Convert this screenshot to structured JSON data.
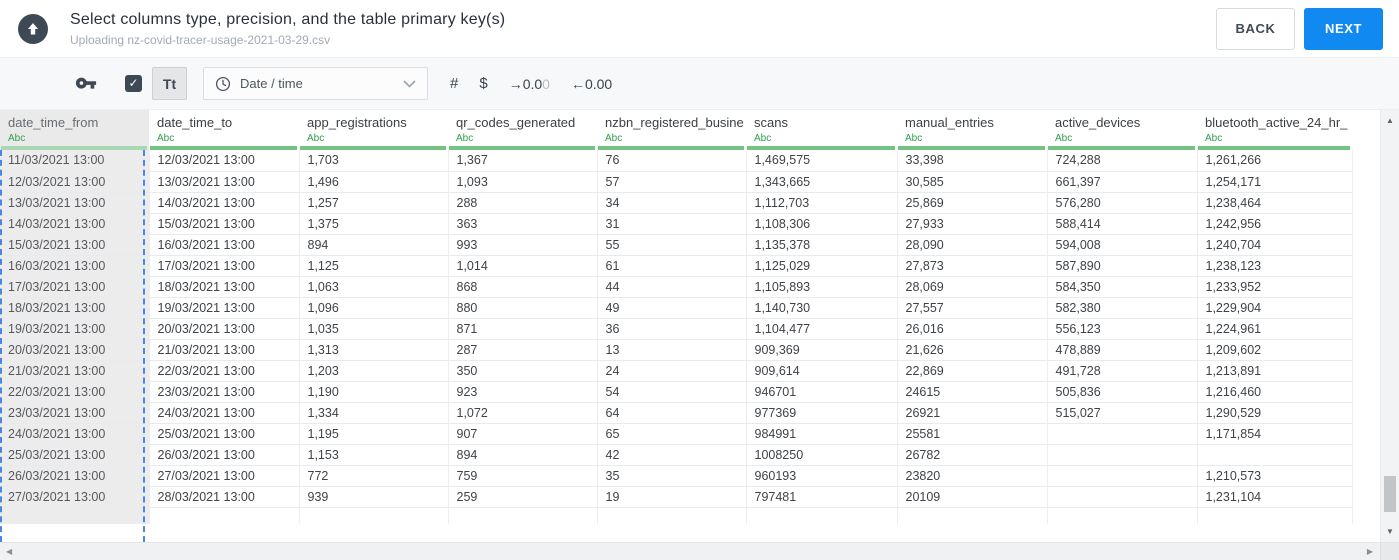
{
  "header": {
    "title": "Select columns type, precision, and the table primary key(s)",
    "subtitle": "Uploading nz-covid-tracer-usage-2021-03-29.csv",
    "back_label": "BACK",
    "next_label": "NEXT"
  },
  "toolbar": {
    "checkbox_checked": true,
    "text_type_label": "Tt",
    "dropdown_value": "Date / time",
    "hash_label": "#",
    "currency_label": "$",
    "precision_add": {
      "arrow": "→",
      "value": "0.0",
      "dim": "0"
    },
    "precision_remove": {
      "arrow": "←",
      "value": "0.00"
    }
  },
  "icons": {
    "check_glyph": "✓",
    "scroll_up_glyph": "▲",
    "scroll_down_glyph": "▼",
    "scroll_left_glyph": "◀",
    "scroll_right_glyph": "▶"
  },
  "colors": {
    "accent_blue": "#1089f0",
    "selection_dash_blue": "#4a86e8",
    "type_green": "#2f9e50",
    "bar_green": "#74c385",
    "bar_green_selected": "#abd8b4",
    "dark_icon": "#3f4956"
  },
  "table": {
    "columns": [
      {
        "name": "date_time_from",
        "type": "Abc",
        "selected": true
      },
      {
        "name": "date_time_to",
        "type": "Abc",
        "selected": false
      },
      {
        "name": "app_registrations",
        "type": "Abc",
        "selected": false
      },
      {
        "name": "qr_codes_generated",
        "type": "Abc",
        "selected": false
      },
      {
        "name": "nzbn_registered_busine",
        "type": "Abc",
        "selected": false
      },
      {
        "name": "scans",
        "type": "Abc",
        "selected": false
      },
      {
        "name": "manual_entries",
        "type": "Abc",
        "selected": false
      },
      {
        "name": "active_devices",
        "type": "Abc",
        "selected": false
      },
      {
        "name": "bluetooth_active_24_hr_",
        "type": "Abc",
        "selected": false
      }
    ],
    "rows": [
      [
        "11/03/2021 13:00",
        "12/03/2021 13:00",
        "1,703",
        "1,367",
        "76",
        "1,469,575",
        "33,398",
        "724,288",
        "1,261,266"
      ],
      [
        "12/03/2021 13:00",
        "13/03/2021 13:00",
        "1,496",
        "1,093",
        "57",
        "1,343,665",
        "30,585",
        "661,397",
        "1,254,171"
      ],
      [
        "13/03/2021 13:00",
        "14/03/2021 13:00",
        "1,257",
        "288",
        "34",
        "1,112,703",
        "25,869",
        "576,280",
        "1,238,464"
      ],
      [
        "14/03/2021 13:00",
        "15/03/2021 13:00",
        "1,375",
        "363",
        "31",
        "1,108,306",
        "27,933",
        "588,414",
        "1,242,956"
      ],
      [
        "15/03/2021 13:00",
        "16/03/2021 13:00",
        "894",
        "993",
        "55",
        "1,135,378",
        "28,090",
        "594,008",
        "1,240,704"
      ],
      [
        "16/03/2021 13:00",
        "17/03/2021 13:00",
        "1,125",
        "1,014",
        "61",
        "1,125,029",
        "27,873",
        "587,890",
        "1,238,123"
      ],
      [
        "17/03/2021 13:00",
        "18/03/2021 13:00",
        "1,063",
        "868",
        "44",
        "1,105,893",
        "28,069",
        "584,350",
        "1,233,952"
      ],
      [
        "18/03/2021 13:00",
        "19/03/2021 13:00",
        "1,096",
        "880",
        "49",
        "1,140,730",
        "27,557",
        "582,380",
        "1,229,904"
      ],
      [
        "19/03/2021 13:00",
        "20/03/2021 13:00",
        "1,035",
        "871",
        "36",
        "1,104,477",
        "26,016",
        "556,123",
        "1,224,961"
      ],
      [
        "20/03/2021 13:00",
        "21/03/2021 13:00",
        "1,313",
        "287",
        "13",
        "909,369",
        "21,626",
        "478,889",
        "1,209,602"
      ],
      [
        "21/03/2021 13:00",
        "22/03/2021 13:00",
        "1,203",
        "350",
        "24",
        "909,614",
        "22,869",
        "491,728",
        "1,213,891"
      ],
      [
        "22/03/2021 13:00",
        "23/03/2021 13:00",
        "1,190",
        "923",
        "54",
        "946701",
        "24615",
        "505,836",
        "1,216,460"
      ],
      [
        "23/03/2021 13:00",
        "24/03/2021 13:00",
        "1,334",
        "1,072",
        "64",
        "977369",
        "26921",
        "515,027",
        "1,290,529"
      ],
      [
        "24/03/2021 13:00",
        "25/03/2021 13:00",
        "1,195",
        "907",
        "65",
        "984991",
        "25581",
        "",
        "1,171,854"
      ],
      [
        "25/03/2021 13:00",
        "26/03/2021 13:00",
        "1,153",
        "894",
        "42",
        "1008250",
        "26782",
        "",
        ""
      ],
      [
        "26/03/2021 13:00",
        "27/03/2021 13:00",
        "772",
        "759",
        "35",
        "960193",
        "23820",
        "",
        "1,210,573"
      ],
      [
        "27/03/2021 13:00",
        "28/03/2021 13:00",
        "939",
        "259",
        "19",
        "797481",
        "20109",
        "",
        "1,231,104"
      ]
    ]
  }
}
